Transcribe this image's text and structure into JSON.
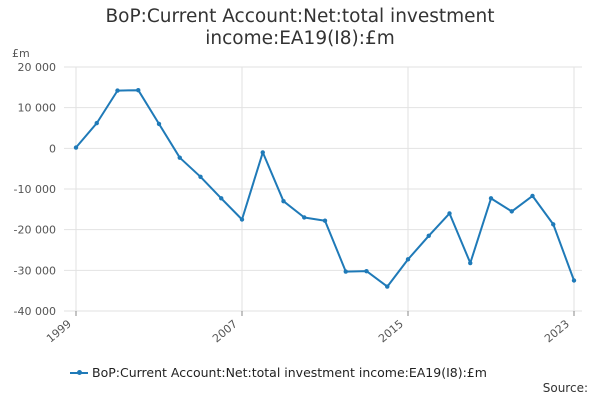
{
  "chart_data": {
    "type": "line",
    "title": "BoP:Current Account:Net:total investment income:EA19(I8):£m",
    "ylabel": "£m",
    "xlabel": "",
    "x": [
      1999,
      2000,
      2001,
      2002,
      2003,
      2004,
      2005,
      2006,
      2007,
      2008,
      2009,
      2010,
      2011,
      2012,
      2013,
      2014,
      2015,
      2016,
      2017,
      2018,
      2019,
      2020,
      2021,
      2022,
      2023
    ],
    "series": [
      {
        "name": "BoP:Current Account:Net:total investment income:EA19(I8):£m",
        "color": "#1f7ab8",
        "values": [
          200,
          6200,
          14200,
          14300,
          6000,
          -2300,
          -7000,
          -12300,
          -17500,
          -1000,
          -13000,
          -17000,
          -17800,
          -30300,
          -30200,
          -34000,
          -27300,
          -21500,
          -16000,
          -28200,
          -12300,
          -15500,
          -11700,
          -18700,
          -32500
        ]
      }
    ],
    "xticks": [
      1999,
      2007,
      2015,
      2023
    ],
    "yticks": [
      20000,
      10000,
      0,
      -10000,
      -20000,
      -30000,
      -40000
    ],
    "ytick_labels": [
      "20 000",
      "10 000",
      "0",
      "-10 000",
      "-20 000",
      "-30 000",
      "-40 000"
    ],
    "ylim": [
      -40000,
      20000
    ],
    "grid": true,
    "legend_position": "bottom-left"
  },
  "source_label": "Source:"
}
